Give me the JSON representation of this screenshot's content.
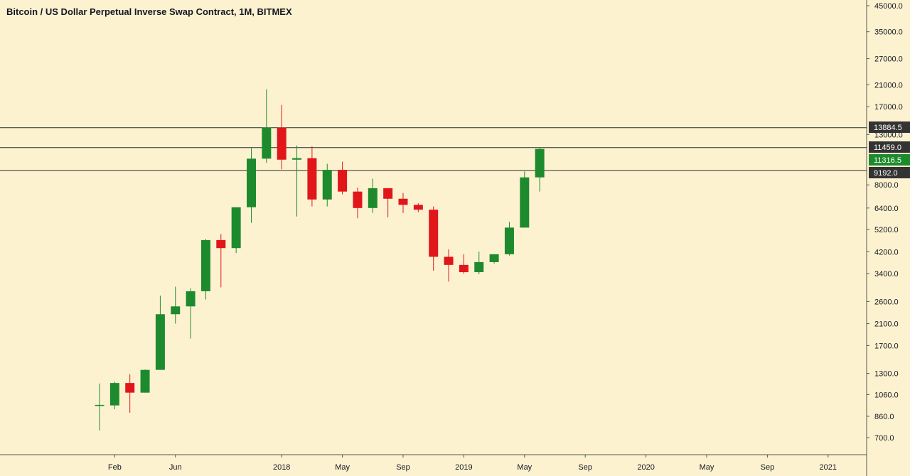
{
  "chart_data": {
    "type": "candlestick",
    "title": "Bitcoin / US Dollar Perpetual Inverse Swap Contract, 1M, BITMEX",
    "scale": "log",
    "ylim": [
      640,
      47000
    ],
    "grid": false,
    "colors": {
      "background": "#fdf2d0",
      "up": "#1e8a2e",
      "down": "#e0161b",
      "neutral": "#1e8a2e",
      "level_line": "#2b2b2b",
      "label_dark": "#333333",
      "label_green": "#1e8a2e"
    },
    "y_ticks": [
      {
        "value": 45000,
        "label": "45000.0"
      },
      {
        "value": 35000,
        "label": "35000.0"
      },
      {
        "value": 27000,
        "label": "27000.0"
      },
      {
        "value": 21000,
        "label": "21000.0"
      },
      {
        "value": 17000,
        "label": "17000.0"
      },
      {
        "value": 13000,
        "label": "13000.0"
      },
      {
        "value": 8000,
        "label": "8000.0"
      },
      {
        "value": 6400,
        "label": "6400.0"
      },
      {
        "value": 5200,
        "label": "5200.0"
      },
      {
        "value": 4200,
        "label": "4200.0"
      },
      {
        "value": 3400,
        "label": "3400.0"
      },
      {
        "value": 2600,
        "label": "2600.0"
      },
      {
        "value": 2100,
        "label": "2100.0"
      },
      {
        "value": 1700,
        "label": "1700.0"
      },
      {
        "value": 1300,
        "label": "1300.0"
      },
      {
        "value": 1060,
        "label": "1060.0"
      },
      {
        "value": 860,
        "label": "860.0"
      },
      {
        "value": 700,
        "label": "700.0"
      }
    ],
    "x_labels": [
      "Feb",
      "Jun",
      "2018",
      "May",
      "Sep",
      "2019",
      "May",
      "Sep",
      "2020",
      "May",
      "Sep",
      "2021"
    ],
    "x_label_months": [
      1,
      5,
      12,
      16,
      20,
      24,
      28,
      32,
      36,
      40,
      44,
      48
    ],
    "levels": [
      {
        "value": 13884.5,
        "label": "13884.5",
        "style": "dark"
      },
      {
        "value": 11459.0,
        "label": "11459.0",
        "style": "dark"
      },
      {
        "value": 11316.5,
        "label": "11316.5",
        "style": "green"
      },
      {
        "value": 9192.0,
        "label": "9192.0",
        "style": "dark"
      }
    ],
    "level_lines": [
      13884.5,
      11459.0,
      9192.0
    ],
    "candles": [
      {
        "month": 0,
        "open": 960,
        "high": 1180,
        "low": 750,
        "close": 960
      },
      {
        "month": 1,
        "open": 955,
        "high": 1200,
        "low": 920,
        "close": 1185
      },
      {
        "month": 2,
        "open": 1185,
        "high": 1290,
        "low": 890,
        "close": 1080
      },
      {
        "month": 3,
        "open": 1080,
        "high": 1350,
        "low": 1080,
        "close": 1345
      },
      {
        "month": 4,
        "open": 1345,
        "high": 2750,
        "low": 1345,
        "close": 2300
      },
      {
        "month": 5,
        "open": 2300,
        "high": 3000,
        "low": 2100,
        "close": 2480
      },
      {
        "month": 6,
        "open": 2480,
        "high": 2950,
        "low": 1820,
        "close": 2870
      },
      {
        "month": 7,
        "open": 2870,
        "high": 4750,
        "low": 2650,
        "close": 4700
      },
      {
        "month": 8,
        "open": 4700,
        "high": 4980,
        "low": 2980,
        "close": 4350
      },
      {
        "month": 9,
        "open": 4350,
        "high": 6400,
        "low": 4150,
        "close": 6450
      },
      {
        "month": 10,
        "open": 6450,
        "high": 11400,
        "low": 5550,
        "close": 10300
      },
      {
        "month": 11,
        "open": 10300,
        "high": 20100,
        "low": 9900,
        "close": 13900
      },
      {
        "month": 12,
        "open": 13900,
        "high": 17300,
        "low": 9300,
        "close": 10200
      },
      {
        "month": 13,
        "open": 10200,
        "high": 11700,
        "low": 5900,
        "close": 10350
      },
      {
        "month": 14,
        "open": 10350,
        "high": 11600,
        "low": 6500,
        "close": 6950
      },
      {
        "month": 15,
        "open": 6950,
        "high": 9800,
        "low": 6500,
        "close": 9250
      },
      {
        "month": 16,
        "open": 9250,
        "high": 10000,
        "low": 7300,
        "close": 7500
      },
      {
        "month": 17,
        "open": 7500,
        "high": 7800,
        "low": 5800,
        "close": 6400
      },
      {
        "month": 18,
        "open": 6400,
        "high": 8500,
        "low": 6100,
        "close": 7750
      },
      {
        "month": 19,
        "open": 7750,
        "high": 7750,
        "low": 5850,
        "close": 7000
      },
      {
        "month": 20,
        "open": 7000,
        "high": 7400,
        "low": 6100,
        "close": 6600
      },
      {
        "month": 21,
        "open": 6600,
        "high": 6700,
        "low": 6150,
        "close": 6300
      },
      {
        "month": 22,
        "open": 6300,
        "high": 6500,
        "low": 3500,
        "close": 4000
      },
      {
        "month": 23,
        "open": 4000,
        "high": 4300,
        "low": 3150,
        "close": 3700
      },
      {
        "month": 24,
        "open": 3700,
        "high": 4100,
        "low": 3400,
        "close": 3450
      },
      {
        "month": 25,
        "open": 3450,
        "high": 4200,
        "low": 3380,
        "close": 3800
      },
      {
        "month": 26,
        "open": 3800,
        "high": 4100,
        "low": 3750,
        "close": 4100
      },
      {
        "month": 27,
        "open": 4100,
        "high": 5600,
        "low": 4050,
        "close": 5300
      },
      {
        "month": 28,
        "open": 5300,
        "high": 9100,
        "low": 5300,
        "close": 8600
      },
      {
        "month": 29,
        "open": 8600,
        "high": 11459,
        "low": 7500,
        "close": 11316.5
      }
    ]
  }
}
